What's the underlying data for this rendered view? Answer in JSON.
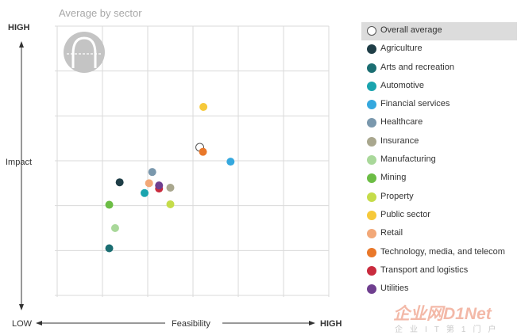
{
  "chart_data": {
    "type": "scatter",
    "title": "Average by sector",
    "xlabel": "Feasibility",
    "ylabel": "Impact",
    "x_low_label": "LOW",
    "x_high_label": "HIGH",
    "y_high_label": "HIGH",
    "xlim": [
      0,
      6
    ],
    "ylim": [
      0,
      6
    ],
    "grid": true,
    "legend_position": "right",
    "series": [
      {
        "name": "Overall average",
        "color": "#ffffff",
        "stroke": "#555555",
        "x": 3.15,
        "y": 3.3,
        "hollow": true
      },
      {
        "name": "Agriculture",
        "color": "#1f3e47",
        "x": 1.38,
        "y": 2.52
      },
      {
        "name": "Arts and recreation",
        "color": "#1b6e72",
        "x": 1.15,
        "y": 1.05
      },
      {
        "name": "Automotive",
        "color": "#1aa4ae",
        "x": 1.93,
        "y": 2.28
      },
      {
        "name": "Financial services",
        "color": "#35a8de",
        "x": 3.83,
        "y": 2.98
      },
      {
        "name": "Healthcare",
        "color": "#7a98ad",
        "x": 2.1,
        "y": 2.75
      },
      {
        "name": "Insurance",
        "color": "#a9a78e",
        "x": 2.5,
        "y": 2.4
      },
      {
        "name": "Manufacturing",
        "color": "#a9d89a",
        "x": 1.28,
        "y": 1.5
      },
      {
        "name": "Mining",
        "color": "#6cbd45",
        "x": 1.15,
        "y": 2.02
      },
      {
        "name": "Property",
        "color": "#c5dc4a",
        "x": 2.5,
        "y": 2.03
      },
      {
        "name": "Public sector",
        "color": "#f6c93a",
        "x": 3.23,
        "y": 4.2
      },
      {
        "name": "Retail",
        "color": "#f2a878",
        "x": 2.03,
        "y": 2.5
      },
      {
        "name": "Technology, media, and telecom",
        "color": "#e9782a",
        "x": 3.22,
        "y": 3.2
      },
      {
        "name": "Transport and logistics",
        "color": "#c92b3e",
        "x": 2.25,
        "y": 2.38
      },
      {
        "name": "Utilities",
        "color": "#6f3f8f",
        "x": 2.25,
        "y": 2.45
      }
    ]
  },
  "watermark": {
    "main": "企业网D1Net",
    "sub": "企业IT第1门户"
  }
}
